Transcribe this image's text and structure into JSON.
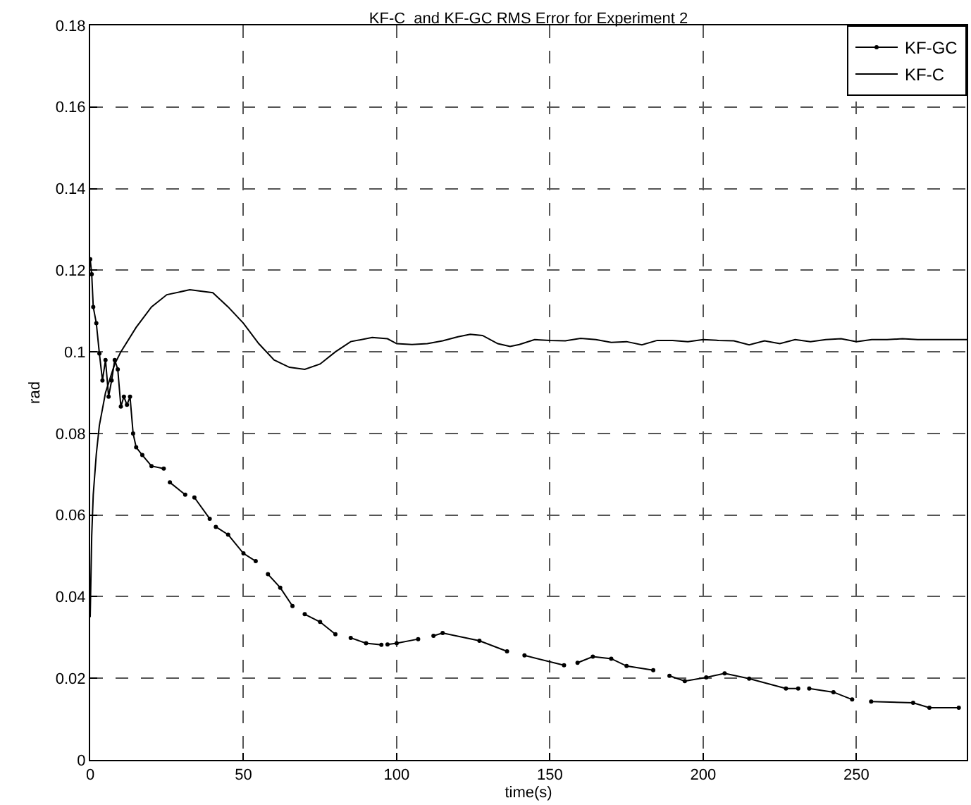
{
  "chart_data": {
    "type": "line",
    "title": "KF-C  and KF-GC RMS Error for Experiment 2",
    "xlabel": "time(s)",
    "ylabel": "rad",
    "xlim": [
      0,
      286
    ],
    "ylim": [
      0,
      0.18
    ],
    "xticks": [
      0,
      50,
      100,
      150,
      200,
      250
    ],
    "yticks": [
      0,
      0.02,
      0.04,
      0.06,
      0.08,
      0.1,
      0.12,
      0.14,
      0.16,
      0.18
    ],
    "grid": true,
    "legend": "top right",
    "series": [
      {
        "name": "KF-GC",
        "color": "#000000",
        "marker": "circle",
        "x": [
          0,
          0.5,
          1,
          2,
          3,
          4,
          5,
          6,
          7,
          8,
          9,
          10,
          11,
          12,
          13,
          14,
          15,
          17,
          20,
          24,
          25,
          26,
          31,
          32.5,
          34,
          39,
          40,
          41,
          45,
          50,
          54,
          56,
          58,
          62,
          66,
          68,
          70,
          75,
          80,
          82.5,
          85,
          90,
          95,
          96,
          97,
          100,
          107,
          108.5,
          112,
          115,
          127,
          136,
          139,
          141.7,
          154.6,
          157,
          159,
          164,
          170,
          175,
          183.7,
          186,
          189,
          194,
          201,
          207,
          215,
          227,
          231,
          233,
          234.6,
          242.5,
          248.6,
          251.5,
          254.8,
          268.5,
          273.8,
          283.4
        ],
        "values": [
          0.1227,
          0.119,
          0.111,
          0.107,
          0.0996,
          0.093,
          0.098,
          0.089,
          0.093,
          0.098,
          0.0957,
          0.0866,
          0.089,
          0.087,
          0.089,
          0.08,
          0.0766,
          0.0747,
          0.072,
          0.0714,
          null,
          0.068,
          0.065,
          null,
          0.0643,
          0.0591,
          null,
          0.0571,
          0.0552,
          0.0506,
          0.0487,
          null,
          0.0455,
          0.0422,
          0.0377,
          null,
          0.0357,
          0.0338,
          0.0308,
          null,
          0.0299,
          0.0286,
          0.0282,
          null,
          0.0283,
          0.0286,
          0.0296,
          null,
          0.0304,
          0.0311,
          0.0292,
          0.0266,
          null,
          0.0256,
          0.0232,
          null,
          0.0238,
          0.0253,
          0.0248,
          0.023,
          0.022,
          null,
          0.0206,
          0.0193,
          0.0202,
          0.0212,
          0.0199,
          0.0175,
          0.0175,
          null,
          0.0175,
          0.0166,
          0.0148,
          null,
          0.0143,
          0.014,
          0.0128,
          0.0128
        ]
      },
      {
        "name": "KF-C",
        "color": "#000000",
        "marker": "none",
        "x": [
          0,
          0.5,
          1,
          2,
          3,
          5,
          8,
          10,
          15,
          20,
          25,
          32.5,
          40,
          45,
          50,
          55,
          60,
          65,
          70,
          75,
          80,
          85,
          92,
          97,
          100,
          105,
          110,
          115,
          120,
          124,
          128,
          133,
          137,
          140,
          145,
          150,
          155,
          160,
          165,
          170,
          175,
          180,
          185,
          190,
          195,
          200,
          205,
          210,
          215,
          220,
          225,
          230,
          235,
          240,
          245,
          250,
          255,
          260,
          265,
          270,
          275,
          286
        ],
        "values": [
          0.035,
          0.055,
          0.065,
          0.075,
          0.082,
          0.09,
          0.097,
          0.1,
          0.106,
          0.111,
          0.114,
          0.1152,
          0.1145,
          0.111,
          0.107,
          0.102,
          0.098,
          0.0962,
          0.0957,
          0.097,
          0.1,
          0.1025,
          0.1035,
          0.1032,
          0.102,
          0.1018,
          0.102,
          0.1027,
          0.1037,
          0.1043,
          0.104,
          0.102,
          0.1013,
          0.1018,
          0.103,
          0.1028,
          0.1027,
          0.1033,
          0.103,
          0.1023,
          0.1025,
          0.1017,
          0.1028,
          0.1028,
          0.1025,
          0.103,
          0.1028,
          0.1027,
          0.1017,
          0.1027,
          0.102,
          0.103,
          0.1025,
          0.103,
          0.1032,
          0.1025,
          0.103,
          0.103,
          0.1032,
          0.103,
          0.103,
          0.103
        ]
      }
    ]
  }
}
